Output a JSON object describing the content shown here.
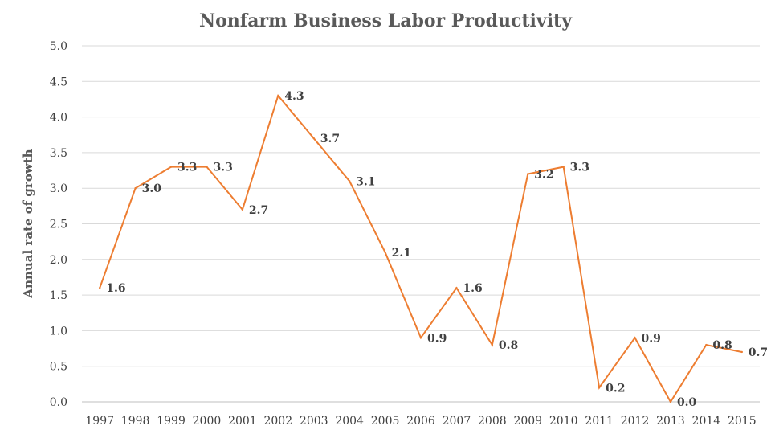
{
  "chart_data": {
    "type": "line",
    "title": "Nonfarm Business Labor Productivity",
    "xlabel": "",
    "ylabel": "Annual rate of growth",
    "categories": [
      "1997",
      "1998",
      "1999",
      "2000",
      "2001",
      "2002",
      "2003",
      "2004",
      "2005",
      "2006",
      "2007",
      "2008",
      "2009",
      "2010",
      "2011",
      "2012",
      "2013",
      "2014",
      "2015"
    ],
    "series": [
      {
        "values": [
          1.6,
          3.0,
          3.3,
          3.3,
          2.7,
          4.3,
          3.7,
          3.1,
          2.1,
          0.9,
          1.6,
          0.8,
          3.2,
          3.3,
          0.2,
          0.9,
          0.0,
          0.8,
          0.7
        ],
        "color": "#ED7D31"
      }
    ],
    "data_labels": [
      "1.6",
      "3.0",
      "3.3",
      "3.3",
      "2.7",
      "4.3",
      "3.7",
      "3.1",
      "2.1",
      "0.9",
      "1.6",
      "0.8",
      "3.2",
      "3.3",
      "0.2",
      "0.9",
      "0.0",
      "0.8",
      "0.7"
    ],
    "ylim": [
      0,
      5
    ],
    "yticks": [
      "0.0",
      "0.5",
      "1.0",
      "1.5",
      "2.0",
      "2.5",
      "3.0",
      "3.5",
      "4.0",
      "4.5",
      "5.0"
    ],
    "grid": true,
    "legend": "none"
  }
}
